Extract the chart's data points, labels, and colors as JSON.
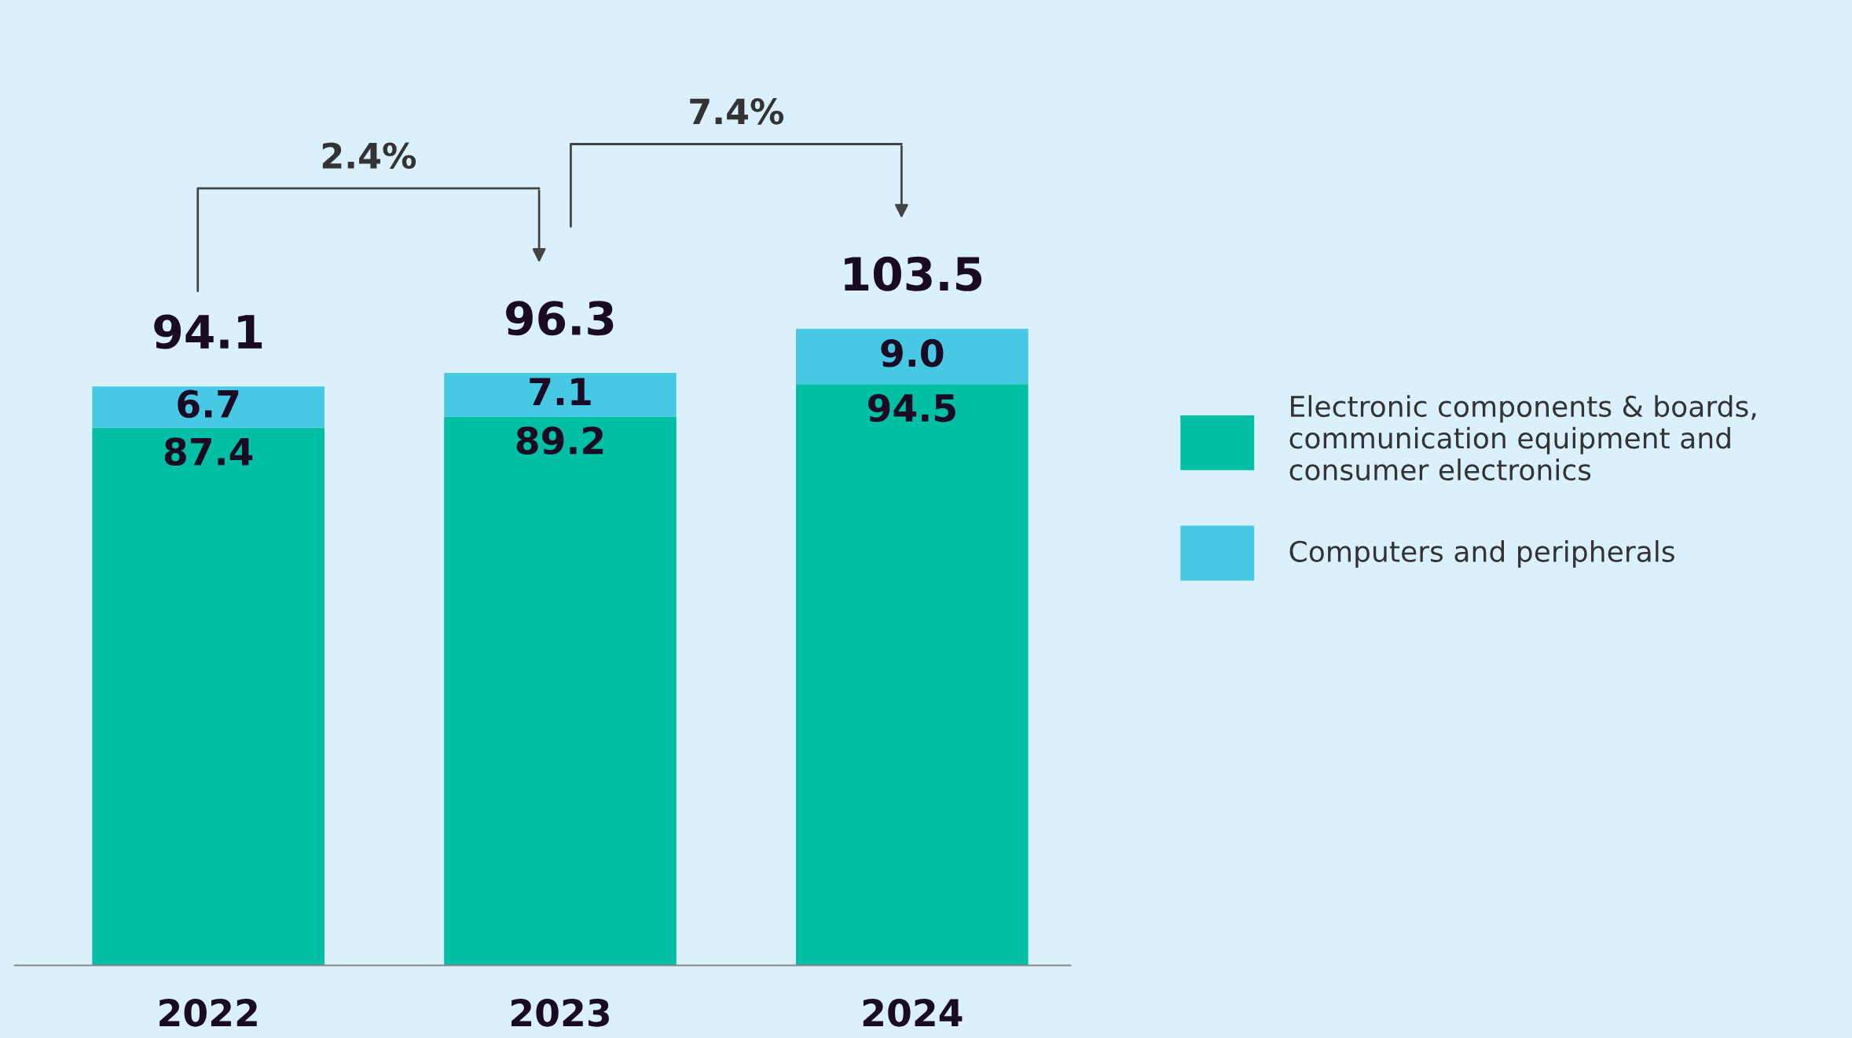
{
  "chart_data": {
    "type": "bar",
    "stacked": true,
    "categories": [
      "2022",
      "2023",
      "2024"
    ],
    "series": [
      {
        "name": "Electronic components & boards, communication equipment and consumer electronics",
        "color": "#00bfa5",
        "values": [
          87.4,
          89.2,
          94.5
        ],
        "value_labels": [
          "87.4",
          "89.2",
          "94.5"
        ]
      },
      {
        "name": "Computers and peripherals",
        "color": "#48c9e3",
        "values": [
          6.7,
          7.1,
          9.0
        ],
        "value_labels": [
          "6.7",
          "7.1",
          "9.0"
        ]
      }
    ],
    "totals": [
      "94.1",
      "96.3",
      "103.5"
    ],
    "annotations": [
      "2.4%",
      "7.4%"
    ],
    "legend": "right",
    "grid": false
  }
}
